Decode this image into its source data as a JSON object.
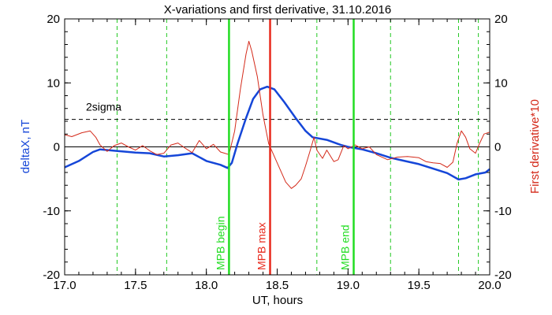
{
  "chart_data": {
    "type": "line",
    "title": "X-variations and first derivative, 31.10.2016",
    "xlabel": "UT, hours",
    "ylabel_left": "deltaX, nT",
    "ylabel_right": "First derivative*10",
    "xlim": [
      17.0,
      20.0
    ],
    "ylim": [
      -20,
      20
    ],
    "x_ticks": [
      "17.0",
      "17.5",
      "18.0",
      "18.5",
      "19.0",
      "19.5",
      "20.0"
    ],
    "y_ticks_left": [
      "20",
      "10",
      "0",
      "-10",
      "-20"
    ],
    "y_ticks_right": [
      "20",
      "10",
      "0",
      "-10",
      "-20"
    ],
    "series": [
      {
        "axis": "left",
        "color": "#1546d8",
        "points": [
          [
            17.0,
            -3.2
          ],
          [
            17.1,
            -2.2
          ],
          [
            17.2,
            -0.8
          ],
          [
            17.25,
            -0.4
          ],
          [
            17.35,
            -0.6
          ],
          [
            17.5,
            -0.9
          ],
          [
            17.6,
            -1.0
          ],
          [
            17.7,
            -1.5
          ],
          [
            17.8,
            -1.3
          ],
          [
            17.9,
            -1.0
          ],
          [
            18.0,
            -2.2
          ],
          [
            18.1,
            -2.8
          ],
          [
            18.15,
            -3.3
          ],
          [
            18.18,
            -2.5
          ],
          [
            18.22,
            0.5
          ],
          [
            18.28,
            4.5
          ],
          [
            18.33,
            7.5
          ],
          [
            18.38,
            9.0
          ],
          [
            18.43,
            9.4
          ],
          [
            18.48,
            9.0
          ],
          [
            18.55,
            7.0
          ],
          [
            18.63,
            4.5
          ],
          [
            18.7,
            2.5
          ],
          [
            18.75,
            1.5
          ],
          [
            18.85,
            1.1
          ],
          [
            18.95,
            0.3
          ],
          [
            19.0,
            0.0
          ],
          [
            19.1,
            -0.4
          ],
          [
            19.2,
            -1.0
          ],
          [
            19.3,
            -1.7
          ],
          [
            19.4,
            -2.2
          ],
          [
            19.5,
            -2.7
          ],
          [
            19.6,
            -3.4
          ],
          [
            19.7,
            -4.1
          ],
          [
            19.78,
            -5.1
          ],
          [
            19.83,
            -4.9
          ],
          [
            19.9,
            -4.3
          ],
          [
            19.97,
            -4.0
          ],
          [
            20.0,
            -3.5
          ]
        ]
      },
      {
        "axis": "right",
        "color": "#d42a1a",
        "points": [
          [
            17.0,
            1.9
          ],
          [
            17.05,
            1.6
          ],
          [
            17.12,
            2.2
          ],
          [
            17.18,
            2.5
          ],
          [
            17.22,
            1.5
          ],
          [
            17.25,
            0.3
          ],
          [
            17.3,
            -0.7
          ],
          [
            17.35,
            0.2
          ],
          [
            17.4,
            0.6
          ],
          [
            17.45,
            0.0
          ],
          [
            17.5,
            -0.5
          ],
          [
            17.55,
            0.2
          ],
          [
            17.6,
            -0.6
          ],
          [
            17.65,
            -1.2
          ],
          [
            17.7,
            -1.0
          ],
          [
            17.75,
            0.3
          ],
          [
            17.8,
            0.6
          ],
          [
            17.85,
            -0.2
          ],
          [
            17.9,
            -0.9
          ],
          [
            17.95,
            1.0
          ],
          [
            18.0,
            -0.3
          ],
          [
            18.05,
            0.4
          ],
          [
            18.1,
            -0.8
          ],
          [
            18.13,
            -1.0
          ],
          [
            18.16,
            -1.2
          ],
          [
            18.2,
            2.5
          ],
          [
            18.24,
            9.0
          ],
          [
            18.28,
            14.5
          ],
          [
            18.3,
            16.5
          ],
          [
            18.32,
            15.0
          ],
          [
            18.36,
            11.0
          ],
          [
            18.4,
            5.0
          ],
          [
            18.44,
            0.5
          ],
          [
            18.48,
            -1.5
          ],
          [
            18.52,
            -3.5
          ],
          [
            18.56,
            -5.5
          ],
          [
            18.6,
            -6.5
          ],
          [
            18.63,
            -6.0
          ],
          [
            18.67,
            -5.0
          ],
          [
            18.7,
            -3.0
          ],
          [
            18.73,
            -0.8
          ],
          [
            18.76,
            1.5
          ],
          [
            18.78,
            -0.5
          ],
          [
            18.82,
            -1.8
          ],
          [
            18.85,
            -0.5
          ],
          [
            18.9,
            -2.3
          ],
          [
            18.93,
            -2.0
          ],
          [
            18.97,
            0.2
          ],
          [
            19.0,
            -0.3
          ],
          [
            19.05,
            0.3
          ],
          [
            19.1,
            -0.3
          ],
          [
            19.15,
            0.0
          ],
          [
            19.2,
            -1.2
          ],
          [
            19.28,
            -2.0
          ],
          [
            19.35,
            -1.6
          ],
          [
            19.42,
            -1.5
          ],
          [
            19.5,
            -1.7
          ],
          [
            19.55,
            -2.3
          ],
          [
            19.6,
            -2.5
          ],
          [
            19.65,
            -2.6
          ],
          [
            19.7,
            -3.2
          ],
          [
            19.74,
            -2.4
          ],
          [
            19.77,
            0.6
          ],
          [
            19.8,
            2.5
          ],
          [
            19.83,
            1.5
          ],
          [
            19.86,
            -0.3
          ],
          [
            19.9,
            -1.0
          ],
          [
            19.93,
            0.6
          ],
          [
            19.96,
            2.0
          ],
          [
            20.0,
            2.3
          ]
        ]
      }
    ],
    "reference_lines": {
      "zero": 0,
      "two_sigma": 4.3,
      "two_sigma_label": "2sigma"
    },
    "vertical_markers": [
      {
        "x": 18.16,
        "label": "MPB begin",
        "color": "#22dd22"
      },
      {
        "x": 18.45,
        "label": "MPB max",
        "color": "#e8291c"
      },
      {
        "x": 19.04,
        "label": "MPB end",
        "color": "#22dd22"
      }
    ],
    "dashed_verticals": [
      17.37,
      17.72,
      18.78,
      19.3,
      19.78,
      19.92
    ],
    "dashed_color": "#22c822"
  }
}
